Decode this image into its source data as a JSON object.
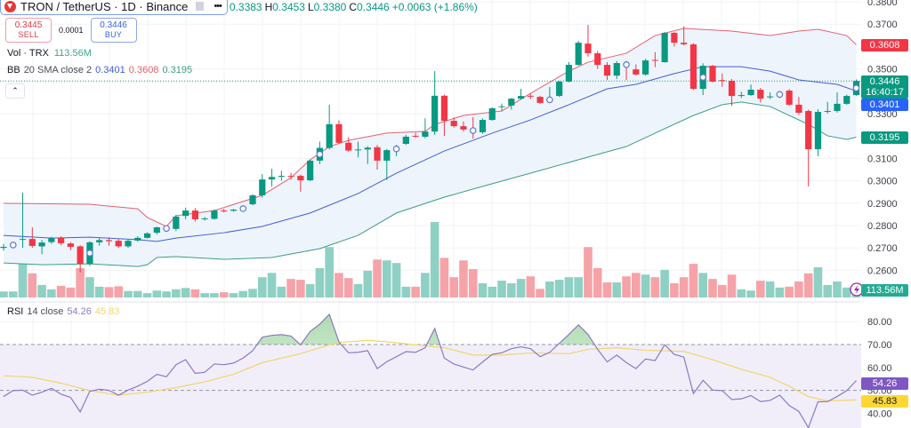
{
  "header": {
    "symbol_title": "TRON / TetherUS · 1D · Binance",
    "more_label": "•••",
    "ohlc": {
      "open": "0.3383",
      "high_label": "H",
      "high": "0.3453",
      "low_label": "L",
      "low": "0.3380",
      "close_label": "C",
      "close": "0.3446",
      "change": "+0.0063 (+1.86%)"
    }
  },
  "trade": {
    "sell_price": "0.3445",
    "sell_label": "SELL",
    "spread": "0.0001",
    "buy_price": "0.3446",
    "buy_label": "BUY"
  },
  "legends": {
    "volume": {
      "name": "Vol · TRX",
      "value": "113.56M"
    },
    "bb": {
      "name": "BB",
      "params": "20 SMA close 2",
      "basis": "0.3401",
      "upper": "0.3608",
      "lower": "0.3195"
    },
    "rsi": {
      "name": "RSI",
      "params": "14 close",
      "value": "54.26",
      "ma": "45.83"
    }
  },
  "badges": {
    "bb_upper": "0.3608",
    "last_price": "0.3446",
    "countdown": "16:40:17",
    "bb_basis": "0.3401",
    "bb_lower": "0.3195",
    "volume": "113.56M",
    "rsi": "54.26",
    "rsi_ma": "45.83"
  },
  "colors": {
    "up": "#089981",
    "down": "#f23645",
    "vol_up": "#8fd0c4",
    "vol_down": "#f5a3a8",
    "bb_upper": "#e2636e",
    "bb_basis": "#3f5fd6",
    "bb_lower": "#3a9e82",
    "bb_fill": "#eef4fc",
    "rsi": "#7e57c2",
    "rsi_ma": "#f0d66c",
    "rsi_band": "#f1eefa",
    "last_price_badge": "#089981",
    "basis_badge": "#2962ff",
    "upper_badge": "#f23645",
    "rsi_ma_badge": "#fdd835"
  },
  "icons": [
    "tron-logo-icon",
    "flag-icon",
    "more-icon",
    "chevron-up-icon",
    "lightning-icon",
    "event-marker-icon"
  ],
  "chart_data": [
    {
      "type": "candlestick",
      "title": "TRON / TetherUS · 1D · Binance",
      "ylim": [
        0.255,
        0.381
      ],
      "y_ticks": [
        "0.3800",
        "0.3700",
        "0.3500",
        "0.3300",
        "0.3100",
        "0.3000",
        "0.2900",
        "0.2800",
        "0.2700",
        "0.2600"
      ],
      "y_tick_values": [
        0.38,
        0.37,
        0.35,
        0.33,
        0.31,
        0.3,
        0.29,
        0.28,
        0.27,
        0.26
      ],
      "last_price": 0.3446,
      "ohlc": [
        [
          0.27,
          0.2718,
          0.2688,
          0.2705
        ],
        [
          0.2712,
          0.2722,
          0.27,
          0.2714
        ],
        [
          0.2738,
          0.2947,
          0.27,
          0.274
        ],
        [
          0.274,
          0.2792,
          0.27,
          0.2709
        ],
        [
          0.2707,
          0.2735,
          0.2672,
          0.2724
        ],
        [
          0.2726,
          0.275,
          0.2718,
          0.2743
        ],
        [
          0.2745,
          0.2752,
          0.2712,
          0.2721
        ],
        [
          0.272,
          0.2726,
          0.269,
          0.2705
        ],
        [
          0.2707,
          0.2712,
          0.259,
          0.2629
        ],
        [
          0.2629,
          0.273,
          0.262,
          0.2725
        ],
        [
          0.2725,
          0.2745,
          0.271,
          0.2735
        ],
        [
          0.2735,
          0.2748,
          0.271,
          0.273
        ],
        [
          0.2732,
          0.274,
          0.27,
          0.2707
        ],
        [
          0.2707,
          0.2738,
          0.27,
          0.2732
        ],
        [
          0.2733,
          0.2752,
          0.2728,
          0.2745
        ],
        [
          0.2745,
          0.277,
          0.2742,
          0.2765
        ],
        [
          0.2768,
          0.2795,
          0.276,
          0.2792
        ],
        [
          0.2786,
          0.2792,
          0.2782,
          0.2788
        ],
        [
          0.2785,
          0.2848,
          0.2775,
          0.284
        ],
        [
          0.2843,
          0.288,
          0.2828,
          0.2867
        ],
        [
          0.2867,
          0.2878,
          0.2818,
          0.2828
        ],
        [
          0.2828,
          0.2838,
          0.2822,
          0.2832
        ],
        [
          0.283,
          0.2872,
          0.2826,
          0.2867
        ],
        [
          0.2867,
          0.2875,
          0.2858,
          0.2866
        ],
        [
          0.2866,
          0.2874,
          0.2862,
          0.2871
        ],
        [
          0.2874,
          0.2885,
          0.2868,
          0.2877
        ],
        [
          0.2895,
          0.294,
          0.289,
          0.2935
        ],
        [
          0.2935,
          0.303,
          0.2925,
          0.3006
        ],
        [
          0.3006,
          0.3053,
          0.2975,
          0.3017
        ],
        [
          0.3018,
          0.3045,
          0.3,
          0.3022
        ],
        [
          0.3022,
          0.3035,
          0.3005,
          0.302
        ],
        [
          0.3022,
          0.3028,
          0.2951,
          0.3002
        ],
        [
          0.3002,
          0.3095,
          0.2998,
          0.309
        ],
        [
          0.309,
          0.3175,
          0.3075,
          0.3147
        ],
        [
          0.3147,
          0.334,
          0.314,
          0.3253
        ],
        [
          0.3253,
          0.327,
          0.3165,
          0.317
        ],
        [
          0.317,
          0.3195,
          0.313,
          0.3135
        ],
        [
          0.3137,
          0.3175,
          0.3105,
          0.314
        ],
        [
          0.314,
          0.3155,
          0.3075,
          0.3148
        ],
        [
          0.315,
          0.316,
          0.305,
          0.309
        ],
        [
          0.309,
          0.3142,
          0.3003,
          0.3137
        ],
        [
          0.314,
          0.316,
          0.311,
          0.3145
        ],
        [
          0.3165,
          0.3205,
          0.316,
          0.3197
        ],
        [
          0.3201,
          0.3215,
          0.3192,
          0.32
        ],
        [
          0.3197,
          0.3279,
          0.319,
          0.322
        ],
        [
          0.322,
          0.349,
          0.3205,
          0.338
        ],
        [
          0.338,
          0.3385,
          0.32,
          0.3268
        ],
        [
          0.3268,
          0.3283,
          0.3238,
          0.3244
        ],
        [
          0.3244,
          0.3265,
          0.322,
          0.3229
        ],
        [
          0.3225,
          0.3284,
          0.3189,
          0.3224
        ],
        [
          0.3217,
          0.3278,
          0.321,
          0.3272
        ],
        [
          0.3272,
          0.3328,
          0.3268,
          0.3324
        ],
        [
          0.333,
          0.3345,
          0.331,
          0.3333
        ],
        [
          0.3336,
          0.337,
          0.3318,
          0.3367
        ],
        [
          0.3367,
          0.3411,
          0.3363,
          0.3379
        ],
        [
          0.338,
          0.339,
          0.3365,
          0.3377
        ],
        [
          0.3375,
          0.338,
          0.3344,
          0.3348
        ],
        [
          0.336,
          0.3419,
          0.3357,
          0.3364
        ],
        [
          0.3379,
          0.3447,
          0.3375,
          0.3443
        ],
        [
          0.3443,
          0.353,
          0.344,
          0.3518
        ],
        [
          0.3518,
          0.3625,
          0.3515,
          0.3617
        ],
        [
          0.3613,
          0.3697,
          0.3555,
          0.357
        ],
        [
          0.357,
          0.358,
          0.35,
          0.3518
        ],
        [
          0.3518,
          0.353,
          0.345,
          0.347
        ],
        [
          0.347,
          0.3535,
          0.3455,
          0.3526
        ],
        [
          0.352,
          0.3535,
          0.345,
          0.3518
        ],
        [
          0.3498,
          0.352,
          0.347,
          0.3475
        ],
        [
          0.3475,
          0.3545,
          0.347,
          0.3538
        ],
        [
          0.354,
          0.3575,
          0.3508,
          0.3538
        ],
        [
          0.353,
          0.3665,
          0.3528,
          0.3661
        ],
        [
          0.3661,
          0.3665,
          0.36,
          0.3617
        ],
        [
          0.3617,
          0.369,
          0.3605,
          0.361
        ],
        [
          0.361,
          0.3615,
          0.3405,
          0.3411
        ],
        [
          0.3411,
          0.3525,
          0.3383,
          0.3514
        ],
        [
          0.3514,
          0.3518,
          0.344,
          0.3443
        ],
        [
          0.345,
          0.348,
          0.342,
          0.3447
        ],
        [
          0.3447,
          0.3455,
          0.3335,
          0.3379
        ],
        [
          0.3381,
          0.3398,
          0.337,
          0.3383
        ],
        [
          0.3383,
          0.343,
          0.338,
          0.3407
        ],
        [
          0.3407,
          0.3415,
          0.335,
          0.3367
        ],
        [
          0.3375,
          0.3395,
          0.3365,
          0.3377
        ],
        [
          0.3385,
          0.34,
          0.337,
          0.3387
        ],
        [
          0.3403,
          0.341,
          0.3335,
          0.334
        ],
        [
          0.334,
          0.3375,
          0.3295,
          0.3304
        ],
        [
          0.3312,
          0.3318,
          0.2975,
          0.3141
        ],
        [
          0.3141,
          0.332,
          0.311,
          0.3308
        ],
        [
          0.331,
          0.3353,
          0.33,
          0.3312
        ],
        [
          0.3312,
          0.3395,
          0.3305,
          0.3344
        ],
        [
          0.3344,
          0.3385,
          0.334,
          0.3379
        ],
        [
          0.3383,
          0.3453,
          0.338,
          0.3446
        ]
      ],
      "volume_millions": [
        70,
        70,
        545,
        280,
        145,
        95,
        135,
        115,
        340,
        235,
        125,
        120,
        130,
        75,
        75,
        50,
        80,
        70,
        95,
        110,
        95,
        50,
        50,
        60,
        50,
        75,
        100,
        235,
        285,
        125,
        215,
        205,
        155,
        340,
        585,
        285,
        225,
        155,
        310,
        440,
        430,
        400,
        125,
        125,
        285,
        875,
        460,
        235,
        430,
        330,
        165,
        125,
        195,
        165,
        215,
        245,
        100,
        185,
        205,
        235,
        235,
        585,
        340,
        175,
        175,
        245,
        285,
        265,
        235,
        320,
        165,
        235,
        390,
        285,
        215,
        145,
        265,
        95,
        80,
        195,
        185,
        115,
        125,
        185,
        280,
        350,
        145,
        185,
        115,
        113.56
      ],
      "event_marker_candles": [
        1,
        9,
        17,
        25,
        33,
        41,
        49,
        57,
        65,
        73,
        81,
        89
      ],
      "bollinger": {
        "upper": [
          [
            0,
            0.2899
          ],
          [
            9,
            0.2895
          ],
          [
            14,
            0.2875
          ],
          [
            15,
            0.2836
          ],
          [
            17,
            0.2796
          ],
          [
            18,
            0.2844
          ],
          [
            22,
            0.2867
          ],
          [
            27,
            0.2935
          ],
          [
            30,
            0.3014
          ],
          [
            32,
            0.3094
          ],
          [
            34,
            0.3153
          ],
          [
            36,
            0.3181
          ],
          [
            40,
            0.3213
          ],
          [
            44,
            0.3221
          ],
          [
            45,
            0.3252
          ],
          [
            48,
            0.3292
          ],
          [
            52,
            0.3312
          ],
          [
            55,
            0.3391
          ],
          [
            59,
            0.349
          ],
          [
            61,
            0.353
          ],
          [
            65,
            0.357
          ],
          [
            68,
            0.3649
          ],
          [
            71,
            0.3681
          ],
          [
            76,
            0.3669
          ],
          [
            80,
            0.3649
          ],
          [
            83,
            0.3669
          ],
          [
            85,
            0.3677
          ],
          [
            88,
            0.3649
          ],
          [
            89,
            0.3608
          ]
        ],
        "basis": [
          [
            0,
            0.2756
          ],
          [
            5,
            0.2744
          ],
          [
            9,
            0.2748
          ],
          [
            14,
            0.2737
          ],
          [
            16,
            0.2729
          ],
          [
            18,
            0.2744
          ],
          [
            23,
            0.2768
          ],
          [
            27,
            0.2796
          ],
          [
            32,
            0.2856
          ],
          [
            37,
            0.2943
          ],
          [
            41,
            0.3034
          ],
          [
            46,
            0.3133
          ],
          [
            51,
            0.3213
          ],
          [
            55,
            0.3272
          ],
          [
            59,
            0.334
          ],
          [
            63,
            0.3411
          ],
          [
            66,
            0.3431
          ],
          [
            70,
            0.3479
          ],
          [
            73,
            0.351
          ],
          [
            77,
            0.351
          ],
          [
            80,
            0.349
          ],
          [
            83,
            0.3451
          ],
          [
            87,
            0.3431
          ],
          [
            89,
            0.3401
          ]
        ],
        "lower": [
          [
            0,
            0.2633
          ],
          [
            4,
            0.2625
          ],
          [
            9,
            0.2629
          ],
          [
            14,
            0.2617
          ],
          [
            15,
            0.2625
          ],
          [
            16,
            0.2657
          ],
          [
            18,
            0.2661
          ],
          [
            23,
            0.2649
          ],
          [
            28,
            0.2657
          ],
          [
            33,
            0.2697
          ],
          [
            37,
            0.2756
          ],
          [
            41,
            0.2856
          ],
          [
            46,
            0.2927
          ],
          [
            51,
            0.2987
          ],
          [
            55,
            0.3034
          ],
          [
            60,
            0.3094
          ],
          [
            65,
            0.3153
          ],
          [
            68,
            0.3213
          ],
          [
            72,
            0.3292
          ],
          [
            75,
            0.334
          ],
          [
            77,
            0.3352
          ],
          [
            80,
            0.3332
          ],
          [
            82,
            0.3292
          ],
          [
            84,
            0.3252
          ],
          [
            86,
            0.3201
          ],
          [
            88,
            0.3185
          ],
          [
            89,
            0.3195
          ]
        ]
      }
    },
    {
      "type": "line",
      "title": "RSI 14 close",
      "ylim": [
        30,
        87
      ],
      "y_ticks": [
        "80.00",
        "70.00",
        "60.00",
        "50.00",
        "40.00"
      ],
      "y_tick_values": [
        80,
        70,
        60,
        50,
        40
      ],
      "bands": [
        70,
        50
      ],
      "rsi": [
        47.3,
        49.9,
        50.1,
        47.9,
        49.2,
        50.9,
        48.3,
        46.9,
        40.6,
        49.6,
        50.5,
        50.0,
        47.9,
        50.1,
        51.8,
        53.9,
        57.0,
        55.9,
        61.2,
        63.4,
        57.4,
        57.9,
        61.5,
        61.2,
        61.9,
        64.1,
        67.3,
        73.2,
        74.0,
        74.3,
        73.7,
        69.9,
        75.7,
        78.9,
        83.2,
        71.2,
        66.4,
        66.6,
        67.3,
        59.5,
        62.5,
        64.7,
        66.9,
        66.6,
        68.6,
        77.0,
        64.1,
        61.5,
        60.2,
        58.9,
        62.4,
        65.7,
        66.4,
        68.2,
        69.0,
        68.2,
        64.7,
        66.6,
        70.5,
        74.4,
        78.6,
        74.4,
        67.9,
        62.4,
        65.4,
        62.1,
        59.5,
        63.7,
        63.0,
        69.9,
        65.7,
        64.5,
        48.6,
        54.4,
        50.1,
        49.9,
        46.0,
        46.3,
        47.7,
        45.1,
        45.6,
        47.9,
        43.4,
        40.8,
        33.7,
        45.0,
        45.1,
        47.3,
        49.9,
        54.26
      ],
      "rsi_ma": [
        [
          0,
          56.4
        ],
        [
          3,
          55.7
        ],
        [
          6,
          53.1
        ],
        [
          9,
          49.9
        ],
        [
          12,
          47.9
        ],
        [
          15,
          49.2
        ],
        [
          18,
          51.2
        ],
        [
          21,
          53.7
        ],
        [
          24,
          57.0
        ],
        [
          27,
          62.1
        ],
        [
          31,
          66.0
        ],
        [
          34,
          69.9
        ],
        [
          35,
          70.9
        ],
        [
          38,
          71.8
        ],
        [
          40,
          71.2
        ],
        [
          43,
          69.9
        ],
        [
          46,
          68.6
        ],
        [
          49,
          65.4
        ],
        [
          52,
          65.4
        ],
        [
          55,
          66.3
        ],
        [
          59,
          66.0
        ],
        [
          61,
          67.9
        ],
        [
          64,
          68.6
        ],
        [
          67,
          67.5
        ],
        [
          71,
          67.0
        ],
        [
          74,
          63.4
        ],
        [
          77,
          59.2
        ],
        [
          80,
          55.7
        ],
        [
          82,
          51.8
        ],
        [
          84,
          47.3
        ],
        [
          86,
          45.4
        ],
        [
          89,
          45.83
        ]
      ]
    }
  ]
}
